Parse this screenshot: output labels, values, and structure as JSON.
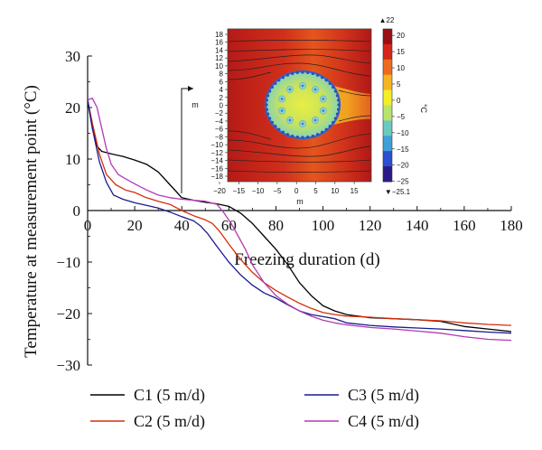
{
  "chart_data": {
    "type": "line",
    "title": "",
    "xlabel": "Freezing duration (d)",
    "ylabel": "Temperature at measurement point (°C)",
    "xlim": [
      0,
      180
    ],
    "ylim": [
      -30,
      30
    ],
    "xticks": [
      "0",
      "20",
      "40",
      "60",
      "80",
      "100",
      "120",
      "140",
      "160",
      "180"
    ],
    "yticks": [
      "30",
      "20",
      "10",
      "0",
      "−10",
      "−20",
      "−30"
    ],
    "grid": false,
    "legend_position": "bottom",
    "series": [
      {
        "name": "C1 (5 m/d)",
        "color": "#000000",
        "points": [
          [
            0,
            21.5
          ],
          [
            2,
            16
          ],
          [
            4,
            12.5
          ],
          [
            6,
            11.5
          ],
          [
            10,
            11
          ],
          [
            15,
            10.5
          ],
          [
            20,
            9.8
          ],
          [
            25,
            9
          ],
          [
            30,
            7.5
          ],
          [
            35,
            5
          ],
          [
            38,
            3.5
          ],
          [
            40,
            2.5
          ],
          [
            45,
            2
          ],
          [
            50,
            1.6
          ],
          [
            55,
            1.3
          ],
          [
            60,
            0.8
          ],
          [
            65,
            -0.5
          ],
          [
            70,
            -2.5
          ],
          [
            75,
            -5
          ],
          [
            80,
            -7.5
          ],
          [
            85,
            -10.5
          ],
          [
            90,
            -14
          ],
          [
            95,
            -16.5
          ],
          [
            100,
            -18.5
          ],
          [
            105,
            -19.5
          ],
          [
            110,
            -20.2
          ],
          [
            115,
            -20.5
          ],
          [
            120,
            -20.8
          ],
          [
            130,
            -21
          ],
          [
            140,
            -21.2
          ],
          [
            150,
            -21.5
          ],
          [
            160,
            -22.5
          ],
          [
            170,
            -23
          ],
          [
            180,
            -23.5
          ]
        ]
      },
      {
        "name": "C2 (5 m/d)",
        "color": "#d62d0c",
        "points": [
          [
            0,
            21.5
          ],
          [
            2,
            17
          ],
          [
            5,
            11
          ],
          [
            8,
            7
          ],
          [
            12,
            5
          ],
          [
            16,
            4
          ],
          [
            20,
            3.5
          ],
          [
            25,
            2.5
          ],
          [
            30,
            1.8
          ],
          [
            35,
            1.2
          ],
          [
            40,
            0
          ],
          [
            45,
            -1
          ],
          [
            50,
            -1.8
          ],
          [
            53,
            -2.5
          ],
          [
            56,
            -4
          ],
          [
            60,
            -6.5
          ],
          [
            65,
            -9.5
          ],
          [
            70,
            -12
          ],
          [
            75,
            -14
          ],
          [
            80,
            -15.5
          ],
          [
            85,
            -16.8
          ],
          [
            90,
            -18
          ],
          [
            95,
            -19
          ],
          [
            100,
            -19.8
          ],
          [
            105,
            -20.2
          ],
          [
            110,
            -20.5
          ],
          [
            120,
            -20.7
          ],
          [
            130,
            -21
          ],
          [
            140,
            -21.2
          ],
          [
            150,
            -21.4
          ],
          [
            160,
            -21.8
          ],
          [
            170,
            -22.1
          ],
          [
            180,
            -22.3
          ]
        ]
      },
      {
        "name": "C3 (5 m/d)",
        "color": "#1a1a8c",
        "points": [
          [
            0,
            21.5
          ],
          [
            2,
            16
          ],
          [
            5,
            9.5
          ],
          [
            8,
            5.5
          ],
          [
            11,
            3
          ],
          [
            15,
            2.2
          ],
          [
            20,
            1.5
          ],
          [
            25,
            1
          ],
          [
            30,
            0.5
          ],
          [
            35,
            -0.3
          ],
          [
            40,
            -1.2
          ],
          [
            45,
            -2
          ],
          [
            48,
            -3
          ],
          [
            51,
            -4.5
          ],
          [
            55,
            -7
          ],
          [
            60,
            -10
          ],
          [
            65,
            -12.5
          ],
          [
            70,
            -14.5
          ],
          [
            75,
            -16
          ],
          [
            80,
            -17
          ],
          [
            85,
            -18.3
          ],
          [
            90,
            -19.5
          ],
          [
            95,
            -20.2
          ],
          [
            100,
            -20.6
          ],
          [
            105,
            -21
          ],
          [
            110,
            -21.8
          ],
          [
            120,
            -22.3
          ],
          [
            130,
            -22.6
          ],
          [
            140,
            -22.8
          ],
          [
            150,
            -23
          ],
          [
            160,
            -23.3
          ],
          [
            170,
            -23.6
          ],
          [
            180,
            -23.8
          ]
        ]
      },
      {
        "name": "C4 (5 m/d)",
        "color": "#b03ab5",
        "points": [
          [
            0,
            21.5
          ],
          [
            2,
            21.8
          ],
          [
            4,
            20
          ],
          [
            6,
            16
          ],
          [
            8,
            12
          ],
          [
            10,
            9
          ],
          [
            13,
            7
          ],
          [
            16,
            6.2
          ],
          [
            20,
            5.2
          ],
          [
            25,
            4
          ],
          [
            30,
            3
          ],
          [
            35,
            2.5
          ],
          [
            40,
            2.2
          ],
          [
            45,
            2
          ],
          [
            50,
            1.8
          ],
          [
            55,
            1.2
          ],
          [
            58,
            -0.5
          ],
          [
            61,
            -2.5
          ],
          [
            64,
            -5
          ],
          [
            67,
            -7.5
          ],
          [
            70,
            -10.5
          ],
          [
            75,
            -14
          ],
          [
            80,
            -16.5
          ],
          [
            85,
            -18.2
          ],
          [
            90,
            -19.5
          ],
          [
            95,
            -20.5
          ],
          [
            100,
            -21.3
          ],
          [
            105,
            -21.8
          ],
          [
            110,
            -22.2
          ],
          [
            120,
            -22.7
          ],
          [
            130,
            -23
          ],
          [
            140,
            -23.4
          ],
          [
            150,
            -23.8
          ],
          [
            160,
            -24.5
          ],
          [
            170,
            -25
          ],
          [
            180,
            -25.2
          ]
        ]
      }
    ],
    "inset": {
      "type": "heatmap",
      "xlabel": "m",
      "ylabel": "m",
      "xticks": [
        "−20",
        "−15",
        "−10",
        "−5",
        "0",
        "5",
        "10",
        "15"
      ],
      "yticks": [
        "18",
        "16",
        "14",
        "12",
        "10",
        "8",
        "6",
        "4",
        "2",
        "0",
        "−2",
        "−4",
        "−6",
        "−8",
        "−10",
        "−12",
        "−14",
        "−16",
        "−18"
      ],
      "colorbar": {
        "unit": "°C",
        "max_label": "▲22",
        "min_label": "▼−25.1",
        "ticks": [
          "20",
          "15",
          "10",
          "5",
          "0",
          "−5",
          "−10",
          "−15",
          "−20",
          "−25"
        ],
        "vmin": -25.1,
        "vmax": 22,
        "colors": [
          "#2b1a86",
          "#2a4fd0",
          "#3fa0d8",
          "#6cc9c2",
          "#b9e36a",
          "#f4ee2a",
          "#f6b420",
          "#ef6a1e",
          "#d6241a",
          "#9a0f14"
        ]
      }
    }
  }
}
